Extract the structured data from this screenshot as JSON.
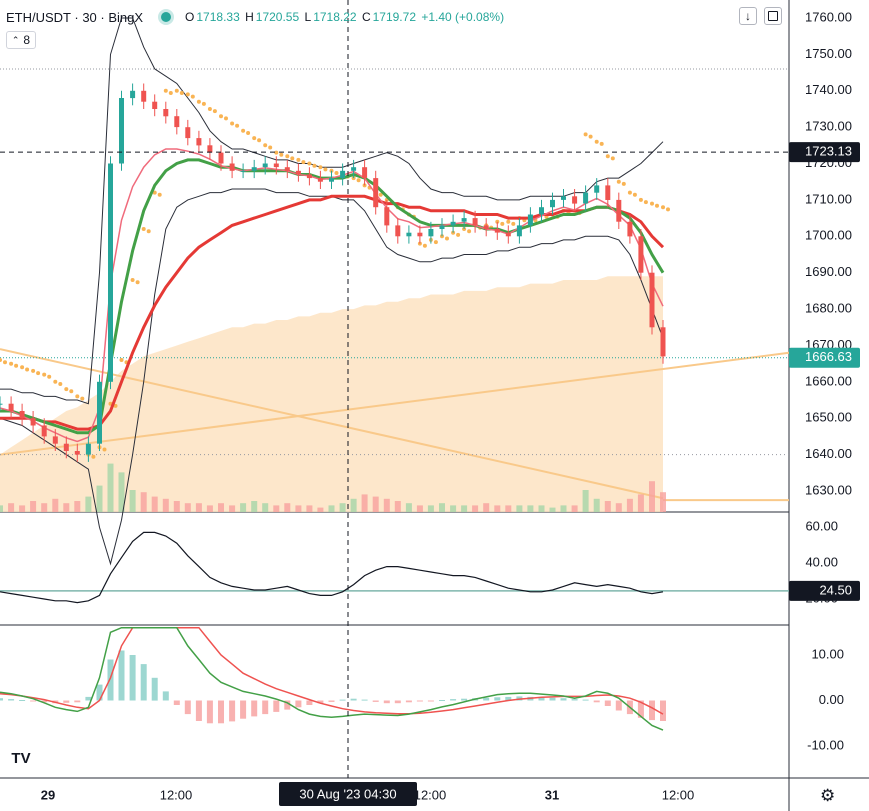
{
  "header": {
    "symbol": "ETH/USDT · 30 · BingX",
    "ohlc": {
      "o": "1718.33",
      "h": "1720.55",
      "l": "1718.22",
      "c": "1719.72",
      "change": "+1.40 (+0.08%)"
    },
    "indicator_count": "8",
    "buttons": {
      "collapse_icon": "arrow-down-icon",
      "maximize_icon": "maximize-icon"
    }
  },
  "colors": {
    "up": "#26a69a",
    "down": "#ef5350",
    "green_ma": "#43a047",
    "red_ma": "#e53935",
    "pink_ma": "#f06b7c",
    "sar": "#f9b454",
    "vwap_fill": "#fde3c2",
    "bands": "#2a2e39",
    "rsi_level": "#7fb6ad",
    "last_price_bg": "#131722",
    "current_price_bg": "#26a69a"
  },
  "price_axis": {
    "labels": [
      "1760.00",
      "1750.00",
      "1740.00",
      "1730.00",
      "1720.00",
      "1710.00",
      "1700.00",
      "1690.00",
      "1680.00",
      "1670.00",
      "1660.00",
      "1650.00",
      "1640.00",
      "1630.00"
    ],
    "crosshair_value": "1723.13",
    "current_price": "1666.63"
  },
  "rsi_axis": {
    "labels": [
      "60.00",
      "40.00",
      "20.00"
    ],
    "current_value": "24.50"
  },
  "macd_axis": {
    "labels": [
      "10.00",
      "0.00",
      "-10.00"
    ]
  },
  "time_axis": {
    "labels": [
      "29",
      "12:00",
      "12:00",
      "31",
      "12:00"
    ],
    "crosshair_label": "30 Aug '23   04:30"
  },
  "chart_data": [
    {
      "type": "candlestick",
      "pane": "price",
      "ylim": [
        1626,
        1762
      ],
      "close_series": [
        1654,
        1652,
        1650,
        1648,
        1645,
        1643,
        1641,
        1640,
        1643,
        1660,
        1720,
        1738,
        1740,
        1737,
        1735,
        1733,
        1730,
        1727,
        1725,
        1723,
        1720,
        1718,
        1718,
        1719,
        1720,
        1719,
        1718,
        1717,
        1716,
        1715,
        1716,
        1718,
        1719,
        1716,
        1708,
        1703,
        1700,
        1701,
        1700,
        1702,
        1703,
        1704,
        1705,
        1703,
        1702,
        1701,
        1700,
        1703,
        1706,
        1708,
        1710,
        1711,
        1709,
        1712,
        1714,
        1710,
        1704,
        1700,
        1690,
        1675,
        1667
      ],
      "green_ma": [
        1652,
        1652,
        1651,
        1650,
        1649,
        1648,
        1647,
        1646,
        1646,
        1648,
        1665,
        1682,
        1696,
        1707,
        1714,
        1718,
        1720,
        1721,
        1721,
        1720,
        1719,
        1719,
        1718,
        1718,
        1718,
        1718,
        1718,
        1717,
        1717,
        1716,
        1716,
        1716,
        1717,
        1716,
        1714,
        1711,
        1708,
        1706,
        1704,
        1703,
        1703,
        1703,
        1703,
        1703,
        1702,
        1702,
        1701,
        1702,
        1703,
        1704,
        1705,
        1706,
        1706,
        1707,
        1708,
        1708,
        1707,
        1705,
        1701,
        1695,
        1690
      ],
      "red_ma": [
        1650,
        1650,
        1650,
        1650,
        1649,
        1649,
        1648,
        1647,
        1647,
        1648,
        1652,
        1660,
        1668,
        1675,
        1681,
        1686,
        1690,
        1694,
        1697,
        1699,
        1701,
        1703,
        1704,
        1705,
        1706,
        1707,
        1708,
        1709,
        1710,
        1710,
        1711,
        1711,
        1711,
        1711,
        1710,
        1709,
        1709,
        1708,
        1708,
        1707,
        1707,
        1707,
        1707,
        1706,
        1706,
        1706,
        1705,
        1705,
        1705,
        1706,
        1706,
        1707,
        1707,
        1707,
        1708,
        1708,
        1707,
        1706,
        1704,
        1700,
        1697
      ],
      "vwap_fill": [
        1640,
        1642,
        1644,
        1646,
        1648,
        1650,
        1652,
        1653,
        1655,
        1657,
        1660,
        1663,
        1665,
        1667,
        1668,
        1669,
        1670,
        1671,
        1672,
        1673,
        1674,
        1675,
        1675,
        1676,
        1676,
        1677,
        1677,
        1678,
        1678,
        1679,
        1679,
        1680,
        1680,
        1681,
        1681,
        1682,
        1682,
        1683,
        1683,
        1684,
        1684,
        1684,
        1685,
        1685,
        1685,
        1686,
        1686,
        1686,
        1687,
        1687,
        1687,
        1688,
        1688,
        1688,
        1688,
        1689,
        1689,
        1689,
        1689,
        1689,
        1689
      ],
      "sar": [
        1666,
        1665,
        1664,
        1663,
        1662,
        1660,
        1658,
        1656,
        1640,
        1642,
        1654,
        1666,
        1688,
        1702,
        1712,
        1740,
        1740,
        1739,
        1737,
        1735,
        1733,
        1731,
        1729,
        1727,
        1725,
        1723,
        1722,
        1721,
        1720,
        1719,
        1718,
        1717,
        1716,
        1714,
        1712,
        1710,
        1708,
        1706,
        1698,
        1699,
        1700,
        1701,
        1702,
        1703,
        1703,
        1704,
        1704,
        1705,
        1705,
        1706,
        1706,
        1707,
        1707,
        1728,
        1726,
        1722,
        1715,
        1712,
        1710,
        1709,
        1708
      ],
      "bb_upper": [
        1658,
        1658,
        1657,
        1657,
        1656,
        1656,
        1655,
        1655,
        1654,
        1690,
        1750,
        1760,
        1760,
        1752,
        1746,
        1744,
        1742,
        1738,
        1734,
        1729,
        1726,
        1724,
        1724,
        1723,
        1722,
        1721,
        1721,
        1720,
        1720,
        1719,
        1719,
        1719,
        1720,
        1721,
        1722,
        1723,
        1722,
        1720,
        1716,
        1713,
        1712,
        1712,
        1711,
        1711,
        1711,
        1710,
        1710,
        1710,
        1711,
        1711,
        1711,
        1711,
        1712,
        1712,
        1715,
        1716,
        1716,
        1718,
        1720,
        1723,
        1726
      ],
      "bb_lower": [
        1650,
        1649,
        1648,
        1646,
        1644,
        1642,
        1640,
        1638,
        1636,
        1620,
        1610,
        1622,
        1640,
        1660,
        1684,
        1702,
        1708,
        1710,
        1711,
        1712,
        1712,
        1713,
        1713,
        1713,
        1713,
        1712,
        1712,
        1712,
        1711,
        1711,
        1711,
        1710,
        1710,
        1707,
        1702,
        1697,
        1695,
        1694,
        1693,
        1693,
        1694,
        1694,
        1695,
        1695,
        1695,
        1696,
        1696,
        1697,
        1697,
        1698,
        1698,
        1699,
        1699,
        1700,
        1700,
        1700,
        1699,
        1695,
        1688,
        1680,
        1672
      ]
    },
    {
      "type": "line",
      "pane": "rsi",
      "ylim": [
        2,
        70
      ],
      "values": [
        24,
        23,
        22,
        21,
        20,
        19,
        19,
        18,
        19,
        22,
        34,
        43,
        52,
        57,
        57,
        55,
        51,
        44,
        38,
        32,
        29,
        27,
        26,
        25,
        25,
        26,
        27,
        25,
        23,
        22,
        22,
        24,
        28,
        33,
        36,
        38,
        38,
        37,
        36,
        35,
        34,
        33,
        33,
        32,
        30,
        28,
        26,
        25,
        24,
        24,
        25,
        27,
        29,
        28,
        27,
        28,
        27,
        26,
        24,
        23,
        24
      ],
      "level": 24.5
    },
    {
      "type": "bar",
      "pane": "macd",
      "ylim": [
        -15,
        16
      ],
      "histogram": [
        0.5,
        0.3,
        0.1,
        -0.2,
        -0.4,
        -0.6,
        -0.5,
        -0.4,
        0.8,
        3.5,
        9,
        11,
        10,
        8,
        5,
        2,
        -1,
        -3,
        -4.5,
        -5,
        -5,
        -4.6,
        -4,
        -3.5,
        -3,
        -2.5,
        -2,
        -1.5,
        -1,
        -0.6,
        -0.3,
        0.2,
        0.4,
        0.2,
        -0.3,
        -0.6,
        -0.6,
        -0.4,
        -0.2,
        -0.1,
        0.1,
        0.3,
        0.4,
        0.5,
        0.6,
        0.7,
        0.8,
        0.9,
        0.8,
        0.7,
        0.6,
        0.5,
        0.3,
        0.2,
        -0.4,
        -1.2,
        -2.2,
        -3.0,
        -3.8,
        -4.3,
        -4.5
      ],
      "macd": [
        1.8,
        1.5,
        1.0,
        0.4,
        -0.5,
        -1.5,
        -2.0,
        -2.4,
        -1.5,
        5,
        15,
        24,
        27,
        26,
        24,
        21,
        16,
        12,
        9,
        6,
        4,
        3,
        2,
        1.5,
        1,
        0.3,
        -0.5,
        -2,
        -3,
        -3.5,
        -3.7,
        -3.5,
        -3.2,
        -3,
        -3.1,
        -3.2,
        -3.3,
        -3.0,
        -2.5,
        -2.0,
        -1.4,
        -0.9,
        -0.3,
        0.3,
        0.8,
        1.3,
        1.5,
        1.6,
        1.6,
        1.4,
        1.2,
        1.0,
        0.5,
        1.0,
        2.0,
        1.6,
        0.5,
        -1.5,
        -3.5,
        -5.5,
        -6.5
      ],
      "signal": [
        1.5,
        1.3,
        1.0,
        0.6,
        0.2,
        -0.4,
        -1.0,
        -1.5,
        -1.8,
        0,
        5,
        12,
        18,
        22,
        24,
        24,
        22,
        19,
        16,
        13,
        10,
        8,
        6,
        4.8,
        3.6,
        2.6,
        1.8,
        1.0,
        0.2,
        -0.6,
        -1.2,
        -1.8,
        -2.2,
        -2.5,
        -2.7,
        -2.8,
        -2.9,
        -2.9,
        -2.8,
        -2.6,
        -2.3,
        -2.0,
        -1.6,
        -1.2,
        -0.8,
        -0.4,
        0,
        0.3,
        0.5,
        0.7,
        0.8,
        0.9,
        0.9,
        0.9,
        1.1,
        1.2,
        1.0,
        0.5,
        -0.4,
        -1.6,
        -3.0
      ]
    },
    {
      "type": "bar",
      "pane": "volume",
      "values": [
        3,
        4,
        3,
        5,
        4,
        6,
        4,
        5,
        7,
        12,
        22,
        18,
        10,
        9,
        7,
        6,
        5,
        4,
        4,
        3,
        4,
        3,
        4,
        5,
        4,
        3,
        4,
        3,
        3,
        2,
        3,
        4,
        6,
        8,
        7,
        6,
        5,
        4,
        3,
        3,
        4,
        3,
        3,
        3,
        4,
        3,
        3,
        3,
        3,
        3,
        2,
        3,
        3,
        10,
        6,
        5,
        4,
        6,
        8,
        14,
        9
      ]
    }
  ]
}
